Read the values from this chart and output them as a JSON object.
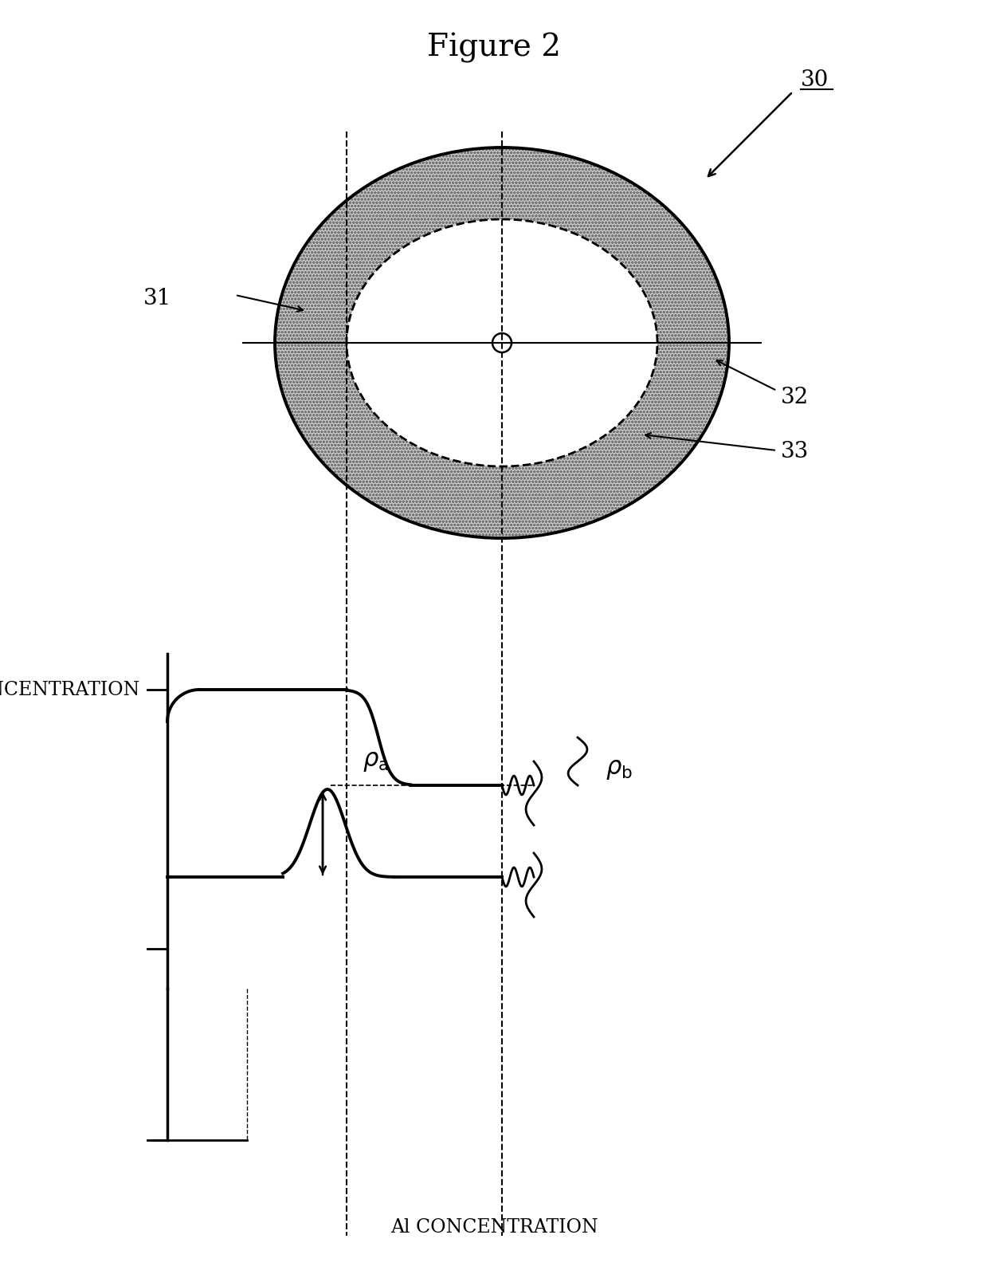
{
  "title": "Figure 2",
  "title_fontsize": 28,
  "background_color": "#ffffff",
  "label_30": "30",
  "label_31": "31",
  "label_32": "32",
  "label_33": "33",
  "label_ni": "Ni CONCENTRATION",
  "label_al": "Al CONCENTRATION",
  "fig_width": 12.4,
  "fig_height": 16.13,
  "dpi": 100
}
